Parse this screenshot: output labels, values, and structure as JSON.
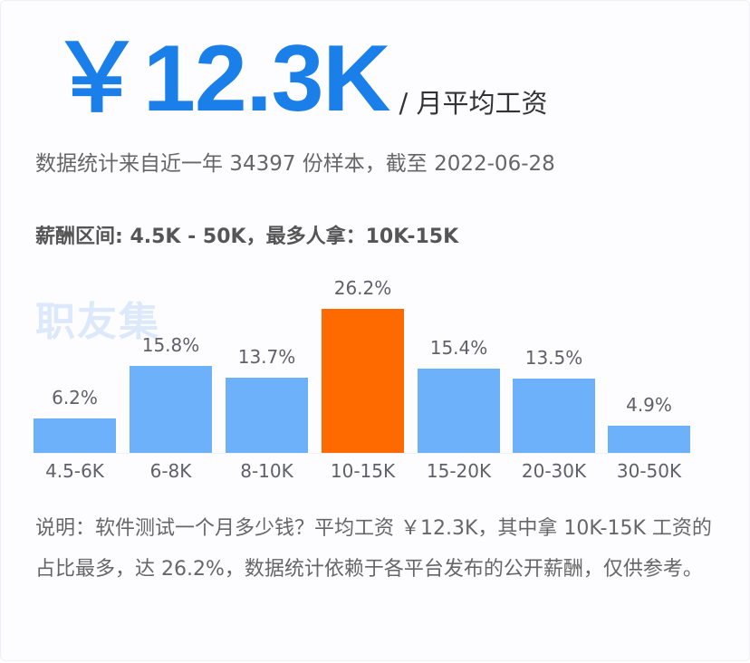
{
  "header": {
    "average_salary": "￥12.3K",
    "unit_label": "/ 月平均工资"
  },
  "stats": {
    "sample_line": "数据统计来自近一年 34397 份样本，截至 2022-06-28",
    "range_line": "薪酬区间: 4.5K - 50K，最多人拿：10K-15K"
  },
  "watermark": "职友集",
  "colors": {
    "accent_blue": "#1a7fe8",
    "bar_blue": "#6eb1fb",
    "bar_highlight": "#ff6a00"
  },
  "chart_data": {
    "type": "bar",
    "title": "",
    "xlabel": "",
    "ylabel": "",
    "categories": [
      "4.5-6K",
      "6-8K",
      "8-10K",
      "10-15K",
      "15-20K",
      "20-30K",
      "30-50K"
    ],
    "values": [
      6.2,
      15.8,
      13.7,
      26.2,
      15.4,
      13.5,
      4.9
    ],
    "value_labels": [
      "6.2%",
      "15.8%",
      "13.7%",
      "26.2%",
      "15.4%",
      "13.5%",
      "4.9%"
    ],
    "highlight_index": 3,
    "unit": "%",
    "ylim": [
      0,
      26.2
    ],
    "grid": false,
    "legend": "none"
  },
  "note": "说明：软件测试一个月多少钱？平均工资 ￥12.3K，其中拿 10K-15K 工资的占比最多，达 26.2%，数据统计依赖于各平台发布的公开薪酬，仅供参考。"
}
